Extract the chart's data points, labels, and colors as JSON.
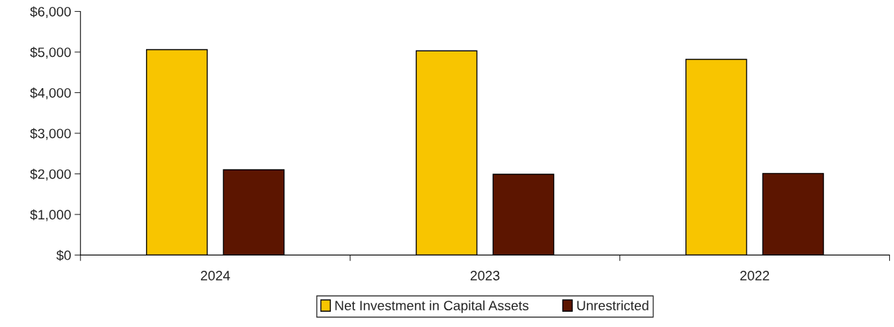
{
  "chart_data": {
    "type": "bar",
    "categories": [
      "2024",
      "2023",
      "2022"
    ],
    "series": [
      {
        "name": "Net Investment in Capital Assets",
        "color": "#f8c500",
        "values": [
          5060,
          5030,
          4820
        ]
      },
      {
        "name": "Unrestricted",
        "color": "#5c1500",
        "values": [
          2100,
          1990,
          2010
        ]
      }
    ],
    "ylim": [
      0,
      6000
    ],
    "yticks": [
      {
        "value": 0,
        "label": "$0"
      },
      {
        "value": 1000,
        "label": "$1,000"
      },
      {
        "value": 2000,
        "label": "$2,000"
      },
      {
        "value": 3000,
        "label": "$3,000"
      },
      {
        "value": 4000,
        "label": "$4,000"
      },
      {
        "value": 5000,
        "label": "$5,000"
      },
      {
        "value": 6000,
        "label": "$6,000"
      }
    ],
    "grid": false,
    "legend": "bottom"
  }
}
